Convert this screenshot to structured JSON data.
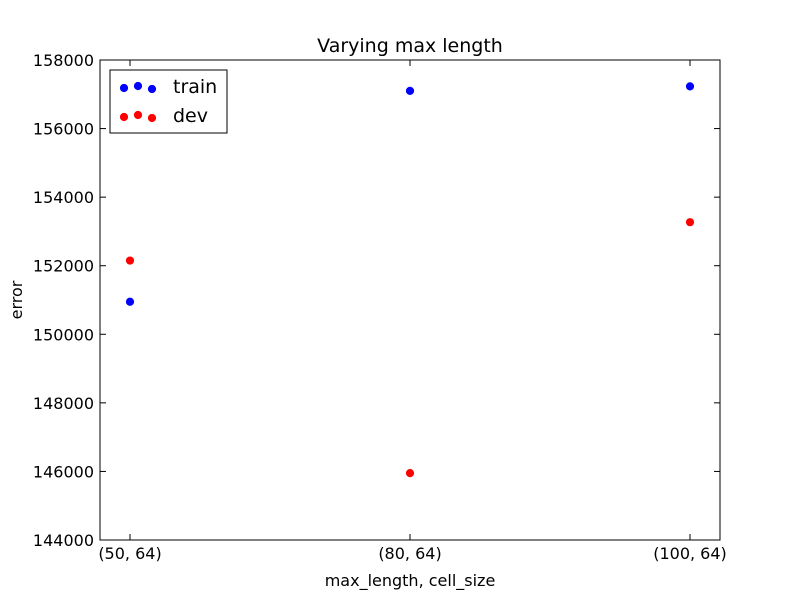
{
  "chart_data": {
    "type": "scatter",
    "title": "Varying max length",
    "xlabel": "max_length, cell_size",
    "ylabel": "error",
    "categories": [
      "(50, 64)",
      "(80, 64)",
      "(100, 64)"
    ],
    "ylim": [
      144000,
      158000
    ],
    "yticks": [
      144000,
      146000,
      148000,
      150000,
      152000,
      154000,
      156000,
      158000
    ],
    "ytick_labels": [
      "144000",
      "146000",
      "148000",
      "150000",
      "152000",
      "154000",
      "156000",
      "158000"
    ],
    "legend_position": "top-left",
    "grid": false,
    "series": [
      {
        "name": "train",
        "color": "#0000ff",
        "values": [
          150950,
          157100,
          157230
        ]
      },
      {
        "name": "dev",
        "color": "#ff0000",
        "values": [
          152150,
          145950,
          153270
        ]
      }
    ]
  }
}
